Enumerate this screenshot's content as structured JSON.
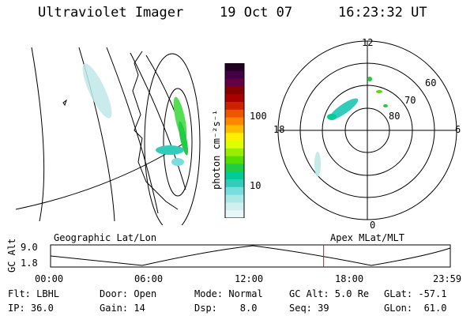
{
  "header": {
    "instrument": "Ultraviolet Imager",
    "date": "19 Oct 07",
    "time": "16:23:32 UT"
  },
  "colorbar": {
    "label": "photon cm⁻²s⁻¹",
    "ticks": [
      "100",
      "10"
    ],
    "colors": [
      "#220022",
      "#440044",
      "#660044",
      "#880000",
      "#aa0000",
      "#cc2200",
      "#ee5500",
      "#ff8800",
      "#ffbb00",
      "#ffee00",
      "#ddff00",
      "#99ee00",
      "#55dd00",
      "#22cc44",
      "#00cc99",
      "#33ccbb",
      "#77dddd",
      "#aae8e8",
      "#d0f0f0",
      "#e8f8f8"
    ]
  },
  "polar": {
    "mlt_labels": [
      "12",
      "18",
      "6",
      "0"
    ],
    "lat_labels": [
      "60",
      "70",
      "80"
    ]
  },
  "timeline": {
    "left_title": "Geographic Lat/Lon",
    "right_title": "Apex MLat/MLT",
    "ylabel": "GC Alt",
    "yticks": [
      "9.0",
      "1.8"
    ],
    "xticks": [
      "00:00",
      "06:00",
      "12:00",
      "18:00",
      "23:59"
    ],
    "marker_time": "16:23"
  },
  "info": {
    "row1": [
      "Flt: LBHL",
      "Door: Open",
      "Mode: Normal",
      "GC Alt: 5.0 Re",
      "GLat: -57.1"
    ],
    "row2": [
      "IP: 36.0",
      "Gain: 14",
      "Dsp:    8.0",
      "Seq: 39",
      "GLon:  61.0"
    ]
  }
}
